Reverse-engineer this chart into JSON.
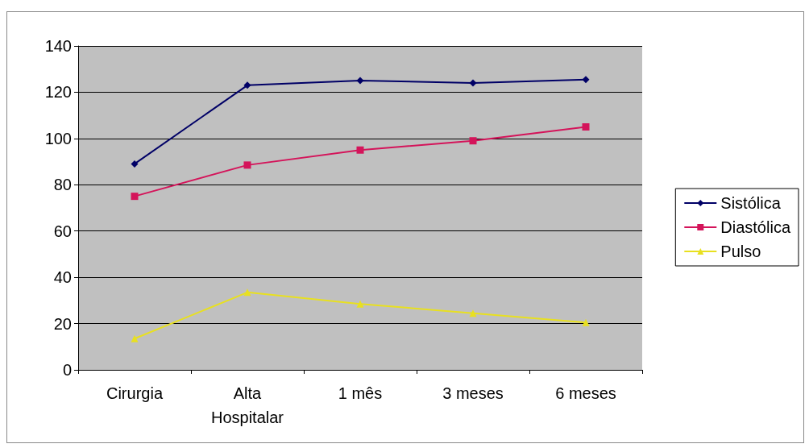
{
  "chart_data": {
    "type": "line",
    "categories": [
      "Cirurgia",
      "Alta\nHospitalar",
      "1 mês",
      "3 meses",
      "6 meses"
    ],
    "series": [
      {
        "name": "Sistólica",
        "color": "#000066",
        "marker": "diamond",
        "values": [
          89,
          123,
          125,
          124,
          125.5
        ]
      },
      {
        "name": "Diastólica",
        "color": "#d4145a",
        "marker": "square",
        "values": [
          75,
          88.5,
          95,
          99,
          105
        ]
      },
      {
        "name": "Pulso",
        "color": "#e8e020",
        "marker": "triangle",
        "values": [
          13.5,
          33.5,
          28.5,
          24.5,
          20.5
        ]
      }
    ],
    "ylim": [
      0,
      140
    ],
    "yticks": [
      0,
      20,
      40,
      60,
      80,
      100,
      120,
      140
    ],
    "grid": "y",
    "legend": "right",
    "line_style": "solid"
  }
}
